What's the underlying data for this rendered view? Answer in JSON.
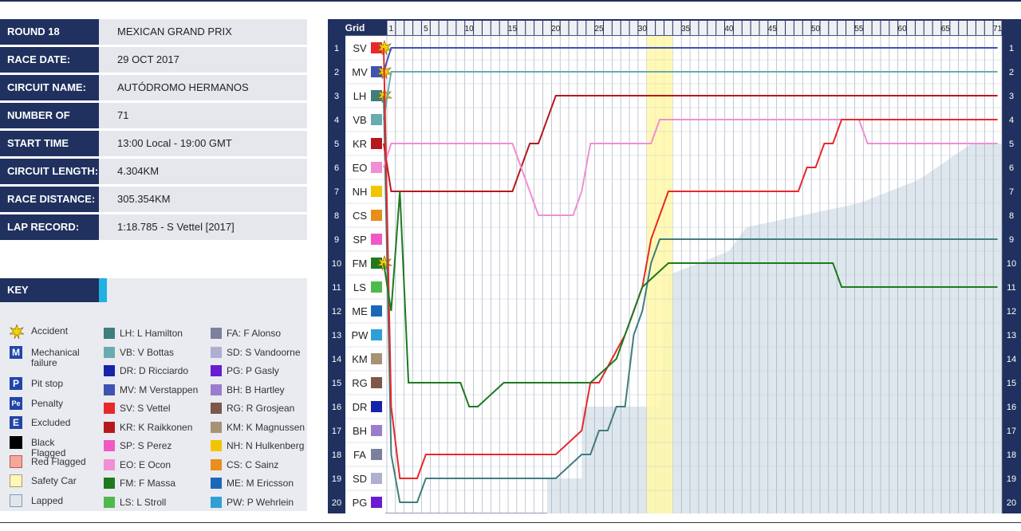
{
  "info": [
    {
      "label": "ROUND 18",
      "value": "MEXICAN GRAND PRIX"
    },
    {
      "label": "RACE DATE:",
      "value": "29 OCT 2017"
    },
    {
      "label": "CIRCUIT NAME:",
      "value": "AUTÓDROMO HERMANOS RODRÍGUEZ"
    },
    {
      "label": "NUMBER OF LAPS:",
      "value": "71"
    },
    {
      "label": "START TIME",
      "value": "13:00 Local - 19:00 GMT"
    },
    {
      "label": "CIRCUIT LENGTH:",
      "value": "4.304KM"
    },
    {
      "label": "RACE DISTANCE:",
      "value": "305.354KM"
    },
    {
      "label": "LAP RECORD:",
      "value": "1:18.785 - S Vettel [2017]"
    }
  ],
  "key": {
    "title": "KEY",
    "symbols": [
      {
        "glyph": "accident-icon",
        "label": "Accident"
      },
      {
        "glyph": "M",
        "label": "Mechanical failure"
      },
      {
        "glyph": "P",
        "label": "Pit stop"
      },
      {
        "glyph": "Pe",
        "label": "Penalty"
      },
      {
        "glyph": "E",
        "label": "Excluded"
      },
      {
        "glyph": "black-flag",
        "label": "Black Flagged"
      },
      {
        "glyph": "red-flag",
        "label": "Red Flagged"
      },
      {
        "glyph": "safety-car",
        "label": "Safety Car"
      },
      {
        "glyph": "lapped",
        "label": "Lapped"
      }
    ],
    "drivers_col1": [
      {
        "text": "LH: L Hamilton",
        "color": "#3f7d7e"
      },
      {
        "text": "VB: V Bottas",
        "color": "#6aabb0"
      },
      {
        "text": "DR: D Ricciardo",
        "color": "#1524a8"
      },
      {
        "text": "MV: M Verstappen",
        "color": "#3f53b3"
      },
      {
        "text": "SV: S Vettel",
        "color": "#e8282b"
      },
      {
        "text": "KR: K Raikkonen",
        "color": "#b5191e"
      },
      {
        "text": "SP: S Perez",
        "color": "#f158c5"
      },
      {
        "text": "EO: E Ocon",
        "color": "#f18ed4"
      },
      {
        "text": "FM: F Massa",
        "color": "#1d7a1d"
      },
      {
        "text": "LS: L Stroll",
        "color": "#4fb94d"
      }
    ],
    "drivers_col2": [
      {
        "text": "FA: F Alonso",
        "color": "#7d7f9f"
      },
      {
        "text": "SD: S Vandoorne",
        "color": "#aeafd1"
      },
      {
        "text": "PG: P Gasly",
        "color": "#6a1cd0"
      },
      {
        "text": "BH: B Hartley",
        "color": "#9a7dcc"
      },
      {
        "text": "RG: R Grosjean",
        "color": "#7b5848"
      },
      {
        "text": "KM: K Magnussen",
        "color": "#a89275"
      },
      {
        "text": "NH: N Hulkenberg",
        "color": "#f2c500"
      },
      {
        "text": "CS: C Sainz",
        "color": "#e88e1a"
      },
      {
        "text": "ME: M Ericsson",
        "color": "#1b68b9"
      },
      {
        "text": "PW: P Wehrlein",
        "color": "#2f9fd6"
      }
    ]
  },
  "chart_data": {
    "type": "line",
    "header": "Grid",
    "laps": 71,
    "lap_ticks": [
      1,
      5,
      10,
      15,
      20,
      25,
      30,
      35,
      40,
      45,
      50,
      55,
      60,
      65,
      71
    ],
    "grid": [
      {
        "pos": 1,
        "code": "SV",
        "color": "#e8282b",
        "event": "accident"
      },
      {
        "pos": 2,
        "code": "MV",
        "color": "#3f53b3",
        "event": "accident"
      },
      {
        "pos": 3,
        "code": "LH",
        "color": "#3f7d7e",
        "event": "accident"
      },
      {
        "pos": 4,
        "code": "VB",
        "color": "#6aabb0"
      },
      {
        "pos": 5,
        "code": "KR",
        "color": "#b5191e"
      },
      {
        "pos": 6,
        "code": "EO",
        "color": "#f18ed4"
      },
      {
        "pos": 7,
        "code": "NH",
        "color": "#f2c500"
      },
      {
        "pos": 8,
        "code": "CS",
        "color": "#e88e1a"
      },
      {
        "pos": 9,
        "code": "SP",
        "color": "#f158c5"
      },
      {
        "pos": 10,
        "code": "FM",
        "color": "#1d7a1d",
        "event": "accident"
      },
      {
        "pos": 11,
        "code": "LS",
        "color": "#4fb94d"
      },
      {
        "pos": 12,
        "code": "ME",
        "color": "#1b68b9"
      },
      {
        "pos": 13,
        "code": "PW",
        "color": "#2f9fd6"
      },
      {
        "pos": 14,
        "code": "KM",
        "color": "#a89275"
      },
      {
        "pos": 15,
        "code": "RG",
        "color": "#7b5848"
      },
      {
        "pos": 16,
        "code": "DR",
        "color": "#1524a8"
      },
      {
        "pos": 17,
        "code": "BH",
        "color": "#9a7dcc"
      },
      {
        "pos": 18,
        "code": "FA",
        "color": "#7d7f9f"
      },
      {
        "pos": 19,
        "code": "SD",
        "color": "#aeafd1"
      },
      {
        "pos": 20,
        "code": "PG",
        "color": "#6a1cd0"
      }
    ],
    "safety_car_laps": [
      31,
      33
    ],
    "series": [
      {
        "code": "MV",
        "color": "#3f53b3",
        "points": [
          [
            0,
            2
          ],
          [
            1,
            1
          ],
          [
            71,
            1
          ]
        ]
      },
      {
        "code": "VB",
        "color": "#6aabb0",
        "points": [
          [
            0,
            4
          ],
          [
            1,
            2
          ],
          [
            71,
            2
          ]
        ]
      },
      {
        "code": "LH",
        "color": "#3f7d7e",
        "points": [
          [
            0,
            3
          ],
          [
            1,
            18
          ],
          [
            2,
            20
          ],
          [
            3,
            20
          ],
          [
            4,
            20
          ],
          [
            5,
            19
          ],
          [
            6,
            19
          ],
          [
            10,
            19
          ],
          [
            20,
            19
          ],
          [
            23,
            18
          ],
          [
            24,
            18
          ],
          [
            25,
            17
          ],
          [
            26,
            17
          ],
          [
            27,
            16
          ],
          [
            28,
            16
          ],
          [
            29,
            13
          ],
          [
            30,
            12
          ],
          [
            31,
            10
          ],
          [
            32,
            9
          ],
          [
            33,
            9
          ],
          [
            34,
            9
          ],
          [
            71,
            9
          ]
        ]
      },
      {
        "code": "KR",
        "color": "#b5191e",
        "points": [
          [
            0,
            5
          ],
          [
            1,
            7
          ],
          [
            5,
            7
          ],
          [
            15,
            7
          ],
          [
            16,
            6
          ],
          [
            17,
            5
          ],
          [
            18,
            5
          ],
          [
            19,
            4
          ],
          [
            20,
            3
          ],
          [
            71,
            3
          ]
        ]
      },
      {
        "code": "EO",
        "color": "#f18ed4",
        "points": [
          [
            0,
            6
          ],
          [
            1,
            5
          ],
          [
            15,
            5
          ],
          [
            16,
            6
          ],
          [
            17,
            7
          ],
          [
            18,
            8
          ],
          [
            19,
            8
          ],
          [
            20,
            8
          ],
          [
            21,
            8
          ],
          [
            22,
            8
          ],
          [
            23,
            7
          ],
          [
            24,
            5
          ],
          [
            25,
            5
          ],
          [
            31,
            5
          ],
          [
            32,
            4
          ],
          [
            33,
            4
          ],
          [
            55,
            4
          ],
          [
            56,
            5
          ],
          [
            57,
            5
          ],
          [
            71,
            5
          ]
        ]
      },
      {
        "code": "SV",
        "color": "#e8282b",
        "points": [
          [
            0,
            1
          ],
          [
            1,
            16
          ],
          [
            2,
            19
          ],
          [
            3,
            19
          ],
          [
            4,
            19
          ],
          [
            5,
            18
          ],
          [
            6,
            18
          ],
          [
            10,
            18
          ],
          [
            20,
            18
          ],
          [
            23,
            17
          ],
          [
            24,
            15
          ],
          [
            25,
            15
          ],
          [
            28,
            13
          ],
          [
            29,
            12
          ],
          [
            30,
            11
          ],
          [
            31,
            9
          ],
          [
            32,
            8
          ],
          [
            33,
            7
          ],
          [
            34,
            7
          ],
          [
            48,
            7
          ],
          [
            49,
            6
          ],
          [
            50,
            6
          ],
          [
            51,
            5
          ],
          [
            52,
            5
          ],
          [
            53,
            4
          ],
          [
            71,
            4
          ]
        ]
      },
      {
        "code": "FM",
        "color": "#1d7a1d",
        "points": [
          [
            0,
            10
          ],
          [
            1,
            12
          ],
          [
            2,
            7
          ],
          [
            3,
            15
          ],
          [
            4,
            15
          ],
          [
            5,
            15
          ],
          [
            9,
            15
          ],
          [
            10,
            16
          ],
          [
            11,
            16
          ],
          [
            14,
            15
          ],
          [
            24,
            15
          ],
          [
            27,
            14
          ],
          [
            28,
            13
          ],
          [
            29,
            12
          ],
          [
            30,
            11
          ],
          [
            33,
            10
          ],
          [
            52,
            10
          ],
          [
            53,
            11
          ],
          [
            71,
            11
          ]
        ]
      }
    ]
  }
}
